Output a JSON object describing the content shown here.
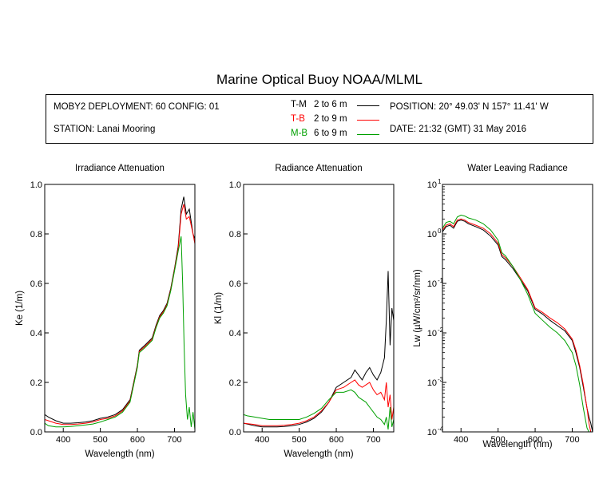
{
  "title": "Marine Optical Buoy NOAA/MLML",
  "info": {
    "deployment": "MOBY2 DEPLOYMENT: 60 CONFIG: 01",
    "station": "STATION: Lanai Mooring",
    "position": "POSITION: 20° 49.03' N   157° 11.41' W",
    "date": "DATE: 21:32 (GMT) 31 May 2016"
  },
  "legend": [
    {
      "code": "T-M",
      "range": "2 to 6  m",
      "color": "#000000"
    },
    {
      "code": "T-B",
      "range": "2 to 9  m",
      "color": "#ff0000"
    },
    {
      "code": "M-B",
      "range": "6 to 9  m",
      "color": "#00a000"
    }
  ],
  "chart_data": [
    {
      "type": "line",
      "title": "Irradiance Attenuation",
      "xlabel": "Wavelength (nm)",
      "ylabel": "Ke  (1/m)",
      "xlim": [
        350,
        755
      ],
      "ylim": [
        0,
        1
      ],
      "xticks": [
        400,
        500,
        600,
        700
      ],
      "yticks": [
        0,
        0.2,
        0.4,
        0.6,
        0.8,
        1.0
      ],
      "ytick_labels": [
        "0.0",
        "0.2",
        "0.4",
        "0.6",
        "0.8",
        "1.0"
      ],
      "series": [
        {
          "name": "T-M",
          "color": "#000000",
          "x": [
            350,
            360,
            380,
            400,
            420,
            440,
            460,
            480,
            500,
            520,
            540,
            560,
            580,
            600,
            605,
            620,
            640,
            650,
            660,
            670,
            680,
            690,
            700,
            710,
            718,
            725,
            732,
            740,
            750,
            755
          ],
          "y": [
            0.07,
            0.06,
            0.045,
            0.035,
            0.035,
            0.037,
            0.04,
            0.045,
            0.055,
            0.06,
            0.07,
            0.09,
            0.13,
            0.27,
            0.33,
            0.35,
            0.38,
            0.43,
            0.47,
            0.49,
            0.52,
            0.58,
            0.66,
            0.75,
            0.9,
            0.95,
            0.88,
            0.9,
            0.8,
            0.78
          ]
        },
        {
          "name": "T-B",
          "color": "#ff0000",
          "x": [
            350,
            360,
            380,
            400,
            420,
            440,
            460,
            480,
            500,
            520,
            540,
            560,
            580,
            600,
            605,
            620,
            640,
            650,
            660,
            670,
            680,
            690,
            700,
            710,
            718,
            725,
            732,
            740,
            750,
            755
          ],
          "y": [
            0.05,
            0.045,
            0.035,
            0.03,
            0.03,
            0.032,
            0.035,
            0.04,
            0.05,
            0.055,
            0.065,
            0.085,
            0.125,
            0.265,
            0.325,
            0.345,
            0.375,
            0.425,
            0.465,
            0.485,
            0.515,
            0.575,
            0.655,
            0.74,
            0.88,
            0.92,
            0.86,
            0.87,
            0.8,
            0.76
          ]
        },
        {
          "name": "M-B",
          "color": "#00a000",
          "x": [
            350,
            360,
            380,
            400,
            420,
            440,
            460,
            480,
            500,
            520,
            540,
            560,
            580,
            600,
            605,
            620,
            640,
            650,
            660,
            670,
            680,
            690,
            700,
            710,
            718,
            722,
            726,
            730,
            735,
            740,
            745,
            750,
            755
          ],
          "y": [
            0.035,
            0.025,
            0.02,
            0.02,
            0.022,
            0.025,
            0.028,
            0.032,
            0.04,
            0.05,
            0.06,
            0.08,
            0.12,
            0.26,
            0.32,
            0.34,
            0.37,
            0.42,
            0.46,
            0.48,
            0.51,
            0.57,
            0.65,
            0.73,
            0.79,
            0.6,
            0.35,
            0.15,
            0.05,
            0.1,
            0.02,
            0.08,
            0.01
          ]
        }
      ]
    },
    {
      "type": "line",
      "title": "Radiance Attenuation",
      "xlabel": "Wavelength (nm)",
      "ylabel": "Kl  (1/m)",
      "xlim": [
        350,
        755
      ],
      "ylim": [
        0,
        1
      ],
      "xticks": [
        400,
        500,
        600,
        700
      ],
      "yticks": [
        0,
        0.2,
        0.4,
        0.6,
        0.8,
        1.0
      ],
      "ytick_labels": [
        "0.0",
        "0.2",
        "0.4",
        "0.6",
        "0.8",
        "1.0"
      ],
      "series": [
        {
          "name": "T-M",
          "color": "#000000",
          "x": [
            350,
            380,
            400,
            420,
            440,
            460,
            480,
            500,
            520,
            540,
            560,
            580,
            600,
            620,
            640,
            650,
            660,
            670,
            680,
            690,
            700,
            710,
            720,
            730,
            735,
            740,
            745,
            750,
            755
          ],
          "y": [
            0.035,
            0.025,
            0.02,
            0.02,
            0.02,
            0.022,
            0.025,
            0.03,
            0.04,
            0.055,
            0.08,
            0.12,
            0.18,
            0.2,
            0.22,
            0.25,
            0.23,
            0.21,
            0.24,
            0.26,
            0.23,
            0.21,
            0.24,
            0.3,
            0.45,
            0.65,
            0.35,
            0.5,
            0.45
          ]
        },
        {
          "name": "T-B",
          "color": "#ff0000",
          "x": [
            350,
            380,
            400,
            420,
            440,
            460,
            480,
            500,
            520,
            540,
            560,
            580,
            600,
            620,
            640,
            650,
            660,
            670,
            680,
            690,
            700,
            710,
            720,
            730,
            735,
            740,
            745,
            750,
            755
          ],
          "y": [
            0.035,
            0.03,
            0.025,
            0.025,
            0.025,
            0.027,
            0.03,
            0.035,
            0.045,
            0.06,
            0.085,
            0.12,
            0.17,
            0.18,
            0.2,
            0.21,
            0.19,
            0.18,
            0.19,
            0.2,
            0.17,
            0.15,
            0.16,
            0.13,
            0.2,
            0.1,
            0.15,
            0.05,
            0.1
          ]
        },
        {
          "name": "M-B",
          "color": "#00a000",
          "x": [
            350,
            360,
            380,
            400,
            420,
            440,
            460,
            480,
            500,
            520,
            540,
            560,
            580,
            600,
            620,
            640,
            650,
            660,
            670,
            680,
            690,
            700,
            710,
            720,
            730,
            735,
            740,
            745,
            750,
            755
          ],
          "y": [
            0.07,
            0.065,
            0.06,
            0.055,
            0.05,
            0.05,
            0.05,
            0.05,
            0.05,
            0.06,
            0.075,
            0.095,
            0.13,
            0.16,
            0.16,
            0.17,
            0.16,
            0.14,
            0.13,
            0.12,
            0.1,
            0.08,
            0.06,
            0.05,
            0.03,
            0.06,
            0.01,
            0.1,
            0.02,
            0.05
          ]
        }
      ]
    },
    {
      "type": "line",
      "title": "Water Leaving Radiance",
      "xlabel": "Wavelength (nm)",
      "ylabel": "Lw  (µW/cm²/sr/nm)",
      "xlim": [
        350,
        755
      ],
      "ylim": [
        0.0001,
        10
      ],
      "yscale": "log",
      "xticks": [
        400,
        500,
        600,
        700
      ],
      "yticks": [
        0.0001,
        0.001,
        0.01,
        0.1,
        1,
        10
      ],
      "ytick_base": [
        "10",
        "10",
        "10",
        "10",
        "10",
        "10"
      ],
      "ytick_exp": [
        "-4",
        "-3",
        "-2",
        "-1",
        "0",
        "1"
      ],
      "series": [
        {
          "name": "T-M",
          "color": "#000000",
          "x": [
            350,
            360,
            370,
            380,
            390,
            400,
            410,
            420,
            440,
            460,
            480,
            500,
            510,
            520,
            540,
            560,
            580,
            600,
            620,
            640,
            660,
            680,
            700,
            710,
            720,
            730,
            740,
            745,
            750,
            755
          ],
          "y": [
            1.1,
            1.4,
            1.5,
            1.3,
            1.8,
            1.9,
            1.8,
            1.6,
            1.4,
            1.2,
            0.9,
            0.6,
            0.35,
            0.3,
            0.2,
            0.12,
            0.07,
            0.03,
            0.024,
            0.018,
            0.014,
            0.011,
            0.007,
            0.004,
            0.002,
            0.0008,
            0.0003,
            0.0002,
            0.00015,
            0.0001
          ]
        },
        {
          "name": "T-B",
          "color": "#ff0000",
          "x": [
            350,
            360,
            370,
            380,
            390,
            400,
            410,
            420,
            440,
            460,
            480,
            500,
            510,
            520,
            540,
            560,
            580,
            600,
            620,
            640,
            660,
            680,
            700,
            710,
            720,
            730,
            740,
            745,
            750,
            755
          ],
          "y": [
            1.2,
            1.5,
            1.6,
            1.4,
            1.9,
            2.0,
            1.9,
            1.7,
            1.5,
            1.3,
            1.0,
            0.65,
            0.38,
            0.33,
            0.22,
            0.13,
            0.075,
            0.032,
            0.026,
            0.02,
            0.016,
            0.012,
            0.0075,
            0.0045,
            0.0022,
            0.0009,
            0.0003,
            0.00015,
            0.0001,
            0.0001
          ]
        },
        {
          "name": "M-B",
          "color": "#00a000",
          "x": [
            350,
            360,
            370,
            380,
            390,
            400,
            410,
            420,
            440,
            460,
            480,
            500,
            510,
            520,
            540,
            560,
            580,
            600,
            620,
            640,
            660,
            680,
            700,
            710,
            720,
            730,
            740,
            745
          ],
          "y": [
            1.3,
            1.7,
            1.8,
            1.6,
            2.2,
            2.4,
            2.3,
            2.1,
            1.9,
            1.6,
            1.2,
            0.75,
            0.42,
            0.36,
            0.22,
            0.12,
            0.06,
            0.025,
            0.018,
            0.013,
            0.01,
            0.007,
            0.004,
            0.0022,
            0.0009,
            0.0003,
            0.00012,
            0.0001
          ]
        }
      ]
    }
  ]
}
